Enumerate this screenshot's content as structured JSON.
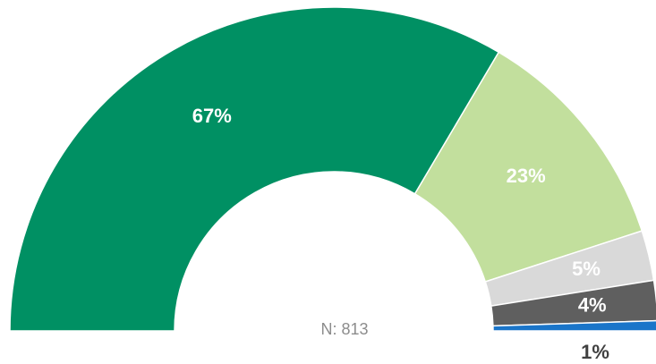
{
  "chart_data": {
    "type": "pie",
    "half": true,
    "categories": [
      "67%",
      "23%",
      "5%",
      "4%",
      "1%"
    ],
    "values": [
      67,
      23,
      5,
      4,
      1
    ],
    "value_labels": [
      "67%",
      "23%",
      "5%",
      "4%",
      "1%"
    ],
    "colors": [
      "#009063",
      "#c2df9d",
      "#d9d9d9",
      "#5f5f5f",
      "#1a75c9"
    ],
    "center_label": "N: 813"
  }
}
